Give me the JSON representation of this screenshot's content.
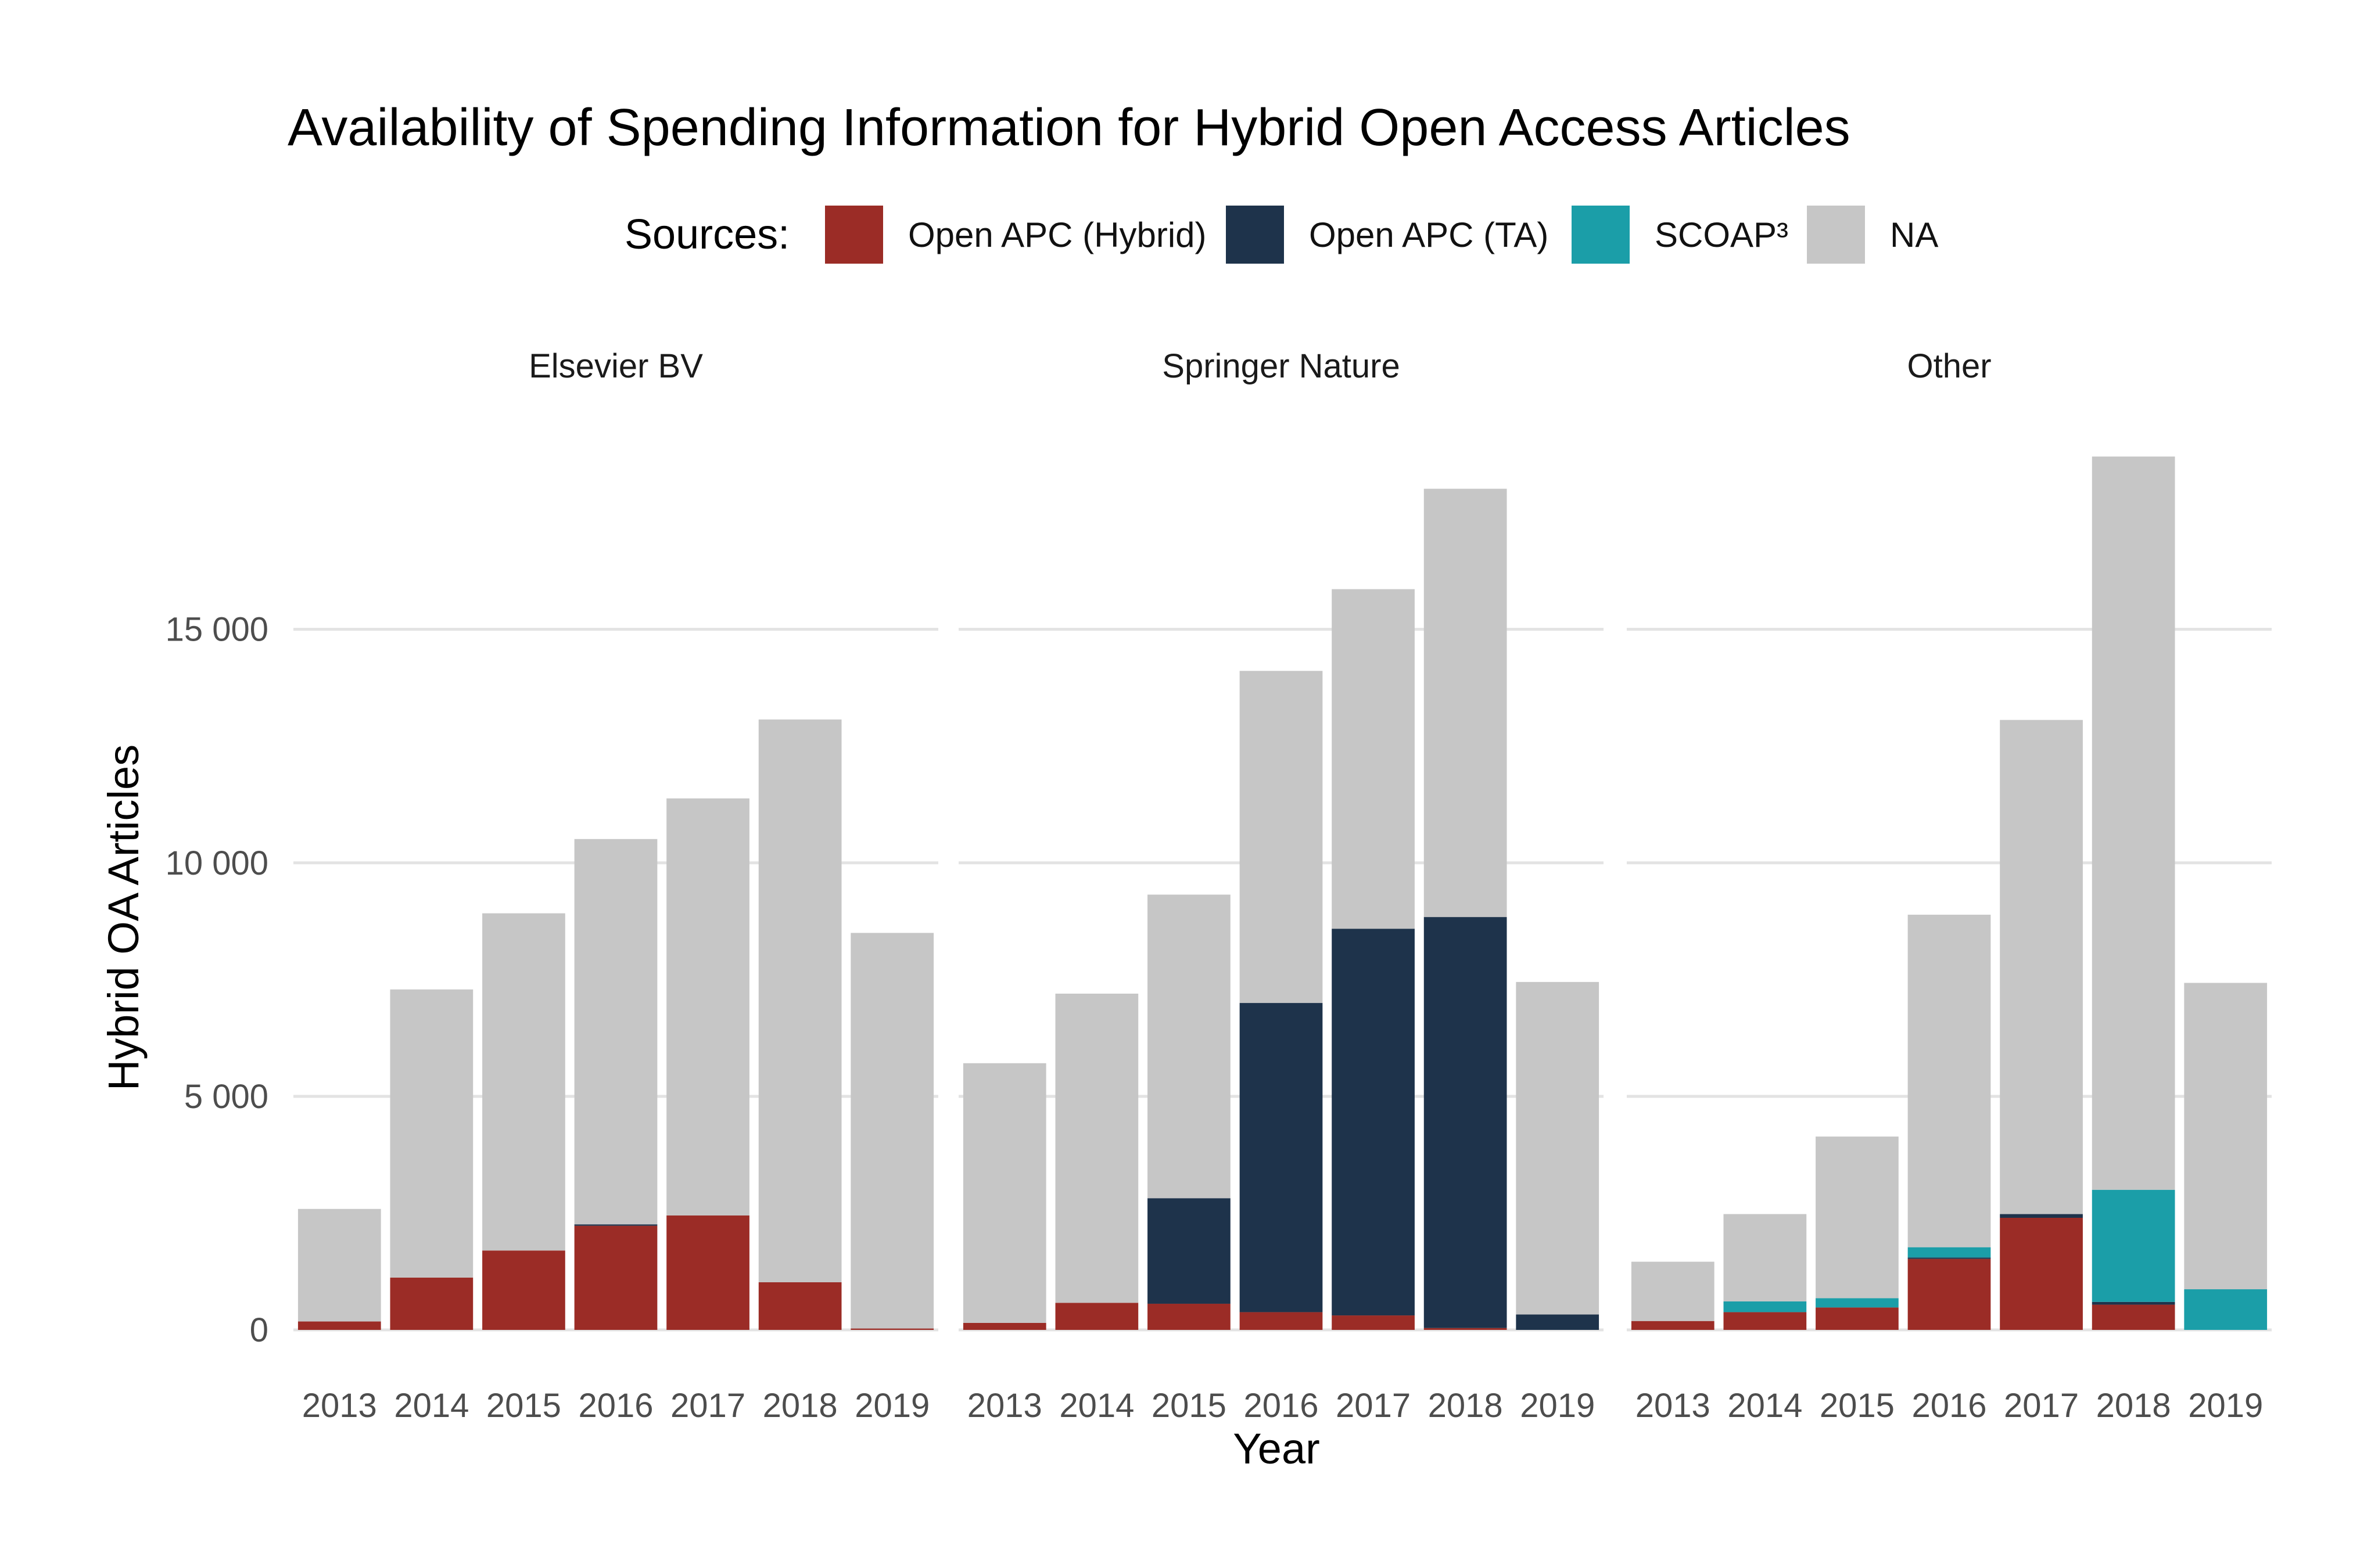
{
  "chart_data": {
    "type": "bar",
    "stacked": true,
    "title": "Availability of Spending Information for Hybrid Open Access Articles",
    "xlabel": "Year",
    "ylabel": "Hybrid OA Articles",
    "ylim": [
      0,
      19000
    ],
    "yticks": [
      0,
      5000,
      10000,
      15000
    ],
    "ytick_labels": [
      "0",
      "5 000",
      "10 000",
      "15 000"
    ],
    "grid": "horizontal",
    "legend": {
      "title": "Sources:",
      "position": "top",
      "items": [
        {
          "name": "Open APC (Hybrid)",
          "color": "#9b2c26"
        },
        {
          "name": "Open APC (TA)",
          "color": "#1e334b"
        },
        {
          "name": "SCOAP³",
          "color": "#1b9ea8"
        },
        {
          "name": "NA",
          "color": "#c6c6c6"
        }
      ]
    },
    "categories": [
      "2013",
      "2014",
      "2015",
      "2016",
      "2017",
      "2018",
      "2019"
    ],
    "series_order": [
      "Open APC (Hybrid)",
      "Open APC (TA)",
      "SCOAP³",
      "NA"
    ],
    "facets": [
      {
        "name": "Elsevier BV",
        "series": [
          {
            "name": "Open APC (Hybrid)",
            "values": [
              180,
              1120,
              1700,
              2230,
              2450,
              1020,
              30
            ]
          },
          {
            "name": "Open APC (TA)",
            "values": [
              0,
              0,
              0,
              30,
              0,
              0,
              0
            ]
          },
          {
            "name": "SCOAP³",
            "values": [
              0,
              0,
              0,
              0,
              0,
              0,
              0
            ]
          },
          {
            "name": "NA",
            "values": [
              2410,
              6170,
              7220,
              8250,
              8930,
              12050,
              8470
            ]
          }
        ]
      },
      {
        "name": "Springer Nature",
        "series": [
          {
            "name": "Open APC (Hybrid)",
            "values": [
              150,
              580,
              560,
              380,
              310,
              40,
              0
            ]
          },
          {
            "name": "Open APC (TA)",
            "values": [
              0,
              0,
              2260,
              6620,
              8280,
              8800,
              330
            ]
          },
          {
            "name": "SCOAP³",
            "values": [
              0,
              0,
              0,
              0,
              0,
              0,
              0
            ]
          },
          {
            "name": "NA",
            "values": [
              5560,
              6620,
              6500,
              7110,
              7270,
              9170,
              7120
            ]
          }
        ]
      },
      {
        "name": "Other",
        "series": [
          {
            "name": "Open APC (Hybrid)",
            "values": [
              190,
              380,
              480,
              1520,
              2400,
              540,
              0
            ]
          },
          {
            "name": "Open APC (TA)",
            "values": [
              0,
              0,
              0,
              30,
              80,
              60,
              0
            ]
          },
          {
            "name": "SCOAP³",
            "values": [
              0,
              230,
              200,
              220,
              0,
              2400,
              870
            ]
          },
          {
            "name": "NA",
            "values": [
              1270,
              1870,
              3460,
              7120,
              10580,
              15700,
              6560
            ]
          }
        ]
      }
    ]
  }
}
